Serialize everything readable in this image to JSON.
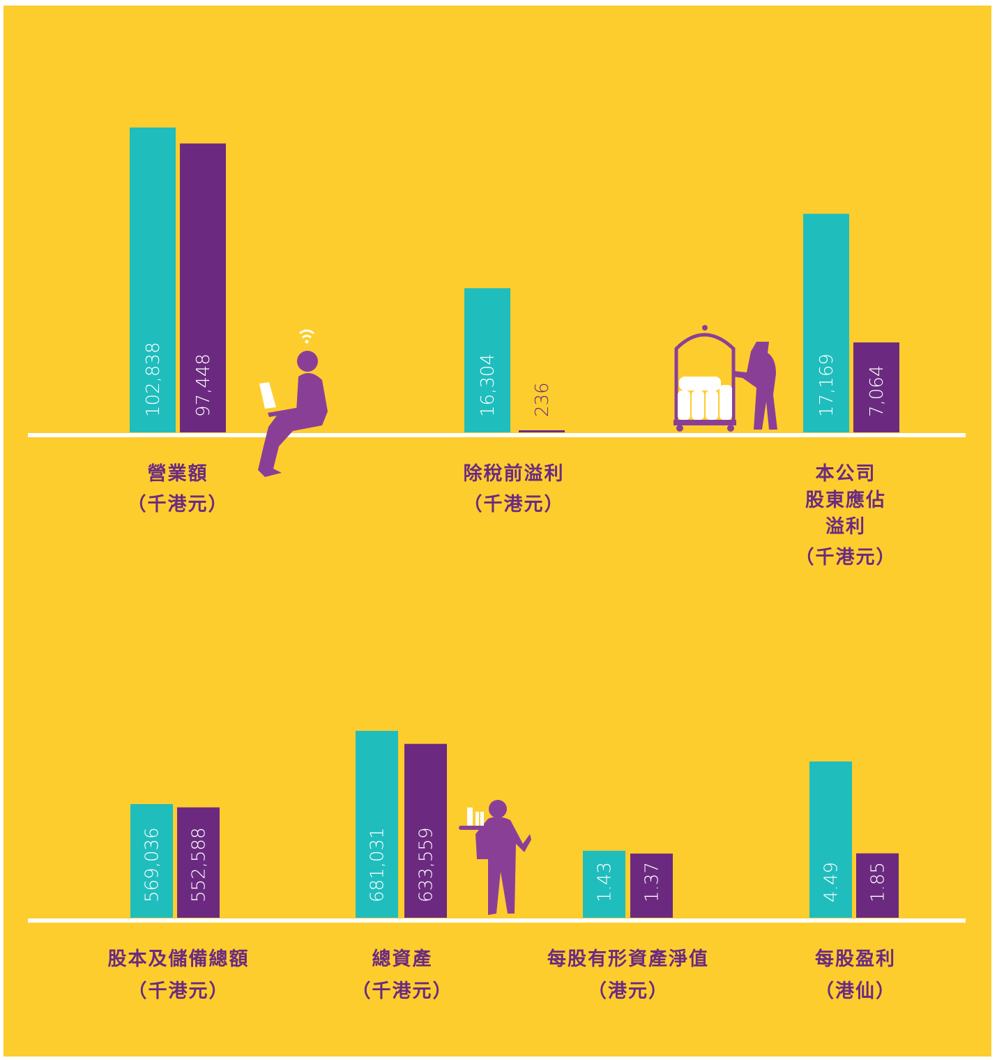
{
  "chart_data": [
    {
      "type": "bar",
      "title": "營業額",
      "subtitle": "（千港元）",
      "values": [
        102838,
        97448
      ],
      "value_labels": [
        "102,838",
        "97,448"
      ],
      "colors": [
        "#20bdbd",
        "#6b2a80"
      ],
      "ylim": [
        0,
        103500
      ]
    },
    {
      "type": "bar",
      "title": "除稅前溢利",
      "subtitle": "（千港元）",
      "values": [
        16304,
        236
      ],
      "value_labels": [
        "16,304",
        "236"
      ],
      "colors": [
        "#20bdbd",
        "#6b2a80"
      ],
      "ylim": [
        0,
        34700
      ]
    },
    {
      "type": "bar",
      "title": [
        "本公司",
        "股東應佔",
        "溢利"
      ],
      "subtitle": "（千港元）",
      "values": [
        17169,
        7064
      ],
      "value_labels": [
        "17,169",
        "7,064"
      ],
      "colors": [
        "#20bdbd",
        "#6b2a80"
      ],
      "ylim": [
        0,
        24100
      ]
    },
    {
      "type": "bar",
      "title": "股本及儲備總額",
      "subtitle": "（千港元）",
      "values": [
        569036,
        552588
      ],
      "value_labels": [
        "569,036",
        "552,588"
      ],
      "colors": [
        "#20bdbd",
        "#6b2a80"
      ],
      "ylim": [
        0,
        942600
      ]
    },
    {
      "type": "bar",
      "title": "總資產",
      "subtitle": "（千港元）",
      "values": [
        681031,
        633559
      ],
      "value_labels": [
        "681,031",
        "633,559"
      ],
      "colors": [
        "#20bdbd",
        "#6b2a80"
      ],
      "ylim": [
        0,
        686100
      ]
    },
    {
      "type": "bar",
      "title": "每股有形資產淨值",
      "subtitle": "（港元）",
      "values": [
        1.43,
        1.37
      ],
      "value_labels": [
        "1.43",
        "1.37"
      ],
      "colors": [
        "#20bdbd",
        "#6b2a80"
      ],
      "ylim": [
        0,
        4.02
      ]
    },
    {
      "type": "bar",
      "title": "每股盈利",
      "subtitle": "（港仙）",
      "values": [
        4.49,
        1.85
      ],
      "value_labels": [
        "4.49",
        "1.85"
      ],
      "colors": [
        "#20bdbd",
        "#6b2a80"
      ],
      "ylim": [
        0,
        5.41
      ]
    }
  ]
}
